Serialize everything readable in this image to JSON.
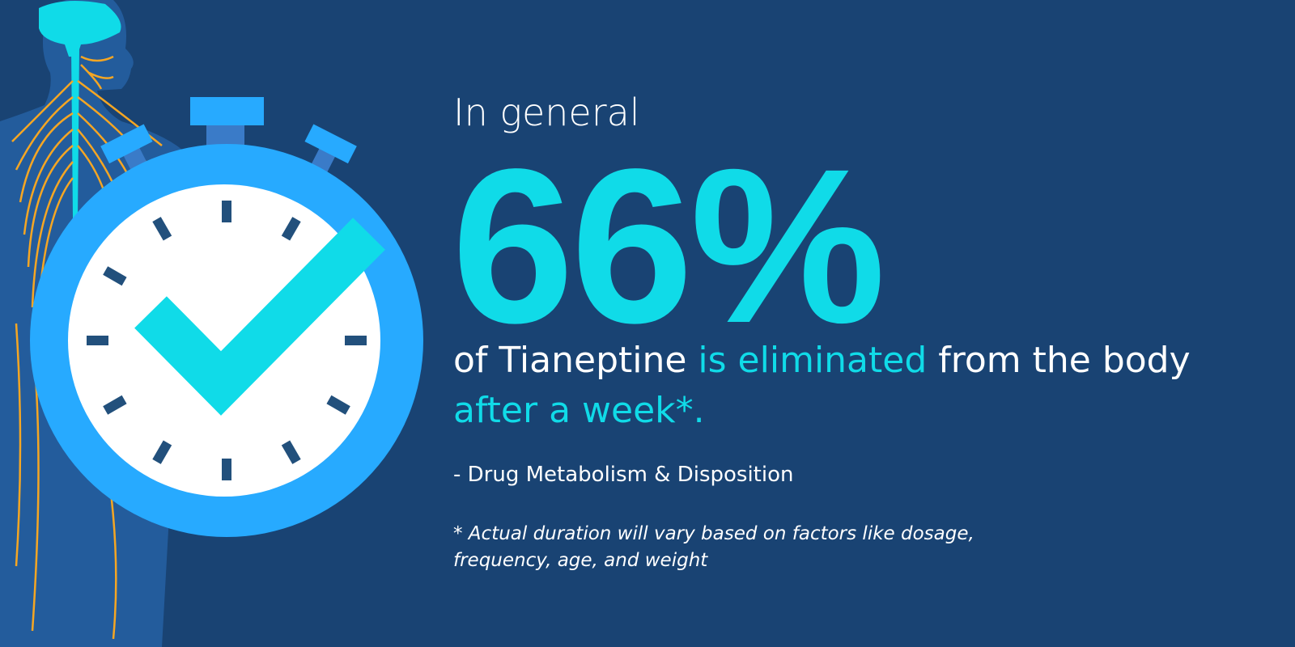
{
  "headline": {
    "intro": "In general",
    "stat": "66%",
    "line1_a": "of Tianeptine ",
    "line1_b": "is eliminated",
    "line1_c": " from the body",
    "line2": "after a week*."
  },
  "source": "- Drug Metabolism & Disposition",
  "footnote": {
    "line1": "* Actual duration will vary based on factors like dosage,",
    "line2": "frequency, age, and weight"
  },
  "illustration": {
    "icons": [
      "human-nervous-system-icon",
      "stopwatch-icon",
      "checkmark-icon"
    ]
  },
  "colors": {
    "background": "#194373",
    "accent": "#10dbe8",
    "stopwatch": "#27aaff",
    "nerves": "#f5a623",
    "text": "#ffffff"
  }
}
